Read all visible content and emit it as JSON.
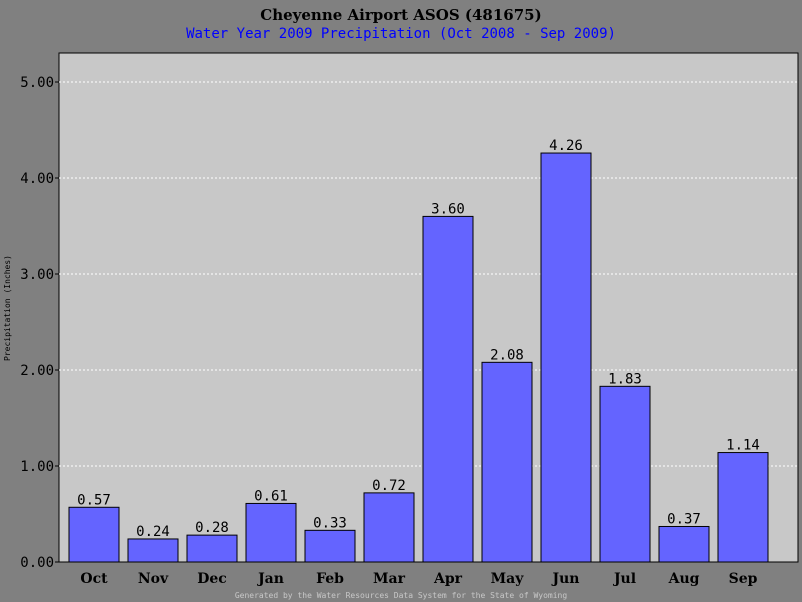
{
  "chart_data": {
    "type": "bar",
    "title": "Cheyenne Airport ASOS (481675)",
    "subtitle": "Water Year 2009 Precipitation (Oct 2008 - Sep 2009)",
    "ylabel": "Precipitation (Inches)",
    "xlabel": "",
    "ylim": [
      0,
      5.3
    ],
    "yticks": [
      "0.00",
      "1.00",
      "2.00",
      "3.00",
      "4.00",
      "5.00"
    ],
    "grid": true,
    "categories": [
      "Oct",
      "Nov",
      "Dec",
      "Jan",
      "Feb",
      "Mar",
      "Apr",
      "May",
      "Jun",
      "Jul",
      "Aug",
      "Sep"
    ],
    "values": [
      0.57,
      0.24,
      0.28,
      0.61,
      0.33,
      0.72,
      3.6,
      2.08,
      4.26,
      1.83,
      0.37,
      1.14
    ],
    "value_labels": [
      "0.57",
      "0.24",
      "0.28",
      "0.61",
      "0.33",
      "0.72",
      "3.60",
      "2.08",
      "4.26",
      "1.83",
      "0.37",
      "1.14"
    ]
  },
  "footer": "Generated by the Water Resources Data System for the State of Wyoming",
  "colors": {
    "background": "#808080",
    "plot_area": "#c8c8c8",
    "bar": "#6464ff",
    "subtitle": "#0000ff",
    "footer": "#c8c8c8",
    "grid": "#ffffff"
  }
}
